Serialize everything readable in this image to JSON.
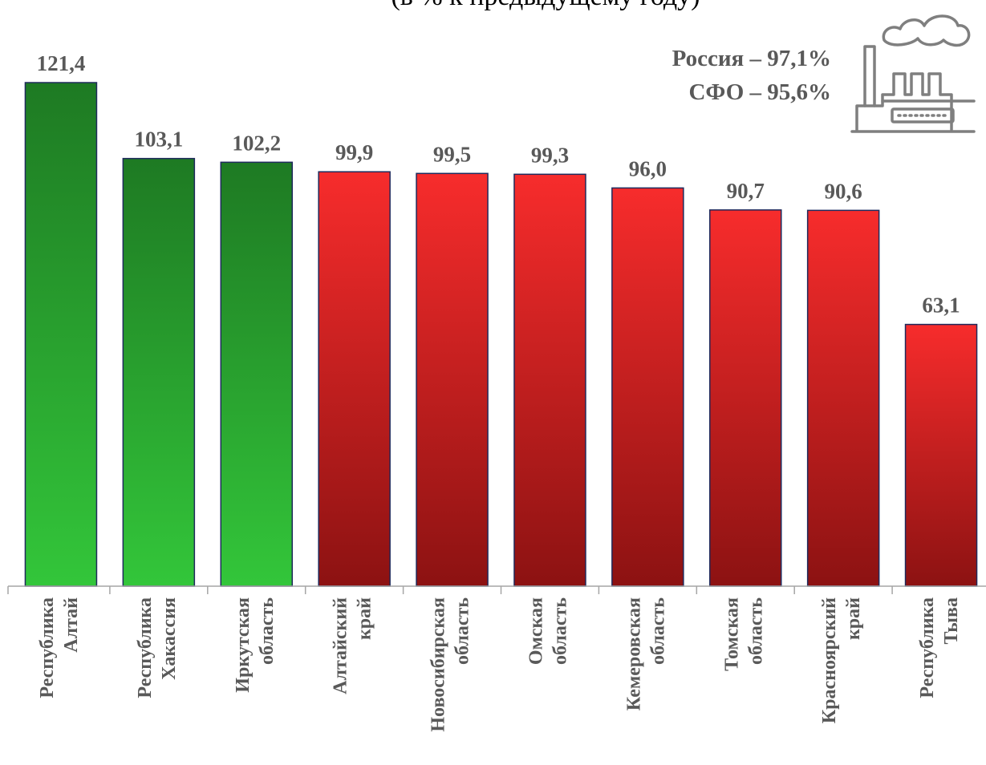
{
  "chart_data": {
    "type": "bar",
    "subtitle": "(в % к предыдущему году)",
    "categories": [
      [
        "Республика",
        "Алтай"
      ],
      [
        "Республика",
        "Хакассия"
      ],
      [
        "Иркутская",
        "область"
      ],
      [
        "Алтайский",
        "край"
      ],
      [
        "Новосибирская",
        "область"
      ],
      [
        "Омская",
        "область"
      ],
      [
        "Кемеровская",
        "область"
      ],
      [
        "Томская",
        "область"
      ],
      [
        "Красноярский",
        "край"
      ],
      [
        "Республика",
        "Тыва"
      ]
    ],
    "values": [
      121.4,
      103.1,
      102.2,
      99.9,
      99.5,
      99.3,
      96.0,
      90.7,
      90.6,
      63.1
    ],
    "value_labels": [
      "121,4",
      "103,1",
      "102,2",
      "99,9",
      "99,5",
      "99,3",
      "96,0",
      "90,7",
      "90,6",
      "63,1"
    ],
    "ylim": [
      0,
      121.4
    ],
    "threshold": 100,
    "colors": {
      "above_top": "#1e7a23",
      "above_bottom": "#33c63a",
      "below_top": "#f72c2c",
      "below_bottom": "#8c1212",
      "bar_stroke": "#1f2a5c",
      "axis": "#a6a6a6"
    },
    "summary": [
      "Россия – 97,1%",
      "СФО – 95,6%"
    ],
    "icon": "factory-icon",
    "grid": false,
    "legend": "none"
  }
}
